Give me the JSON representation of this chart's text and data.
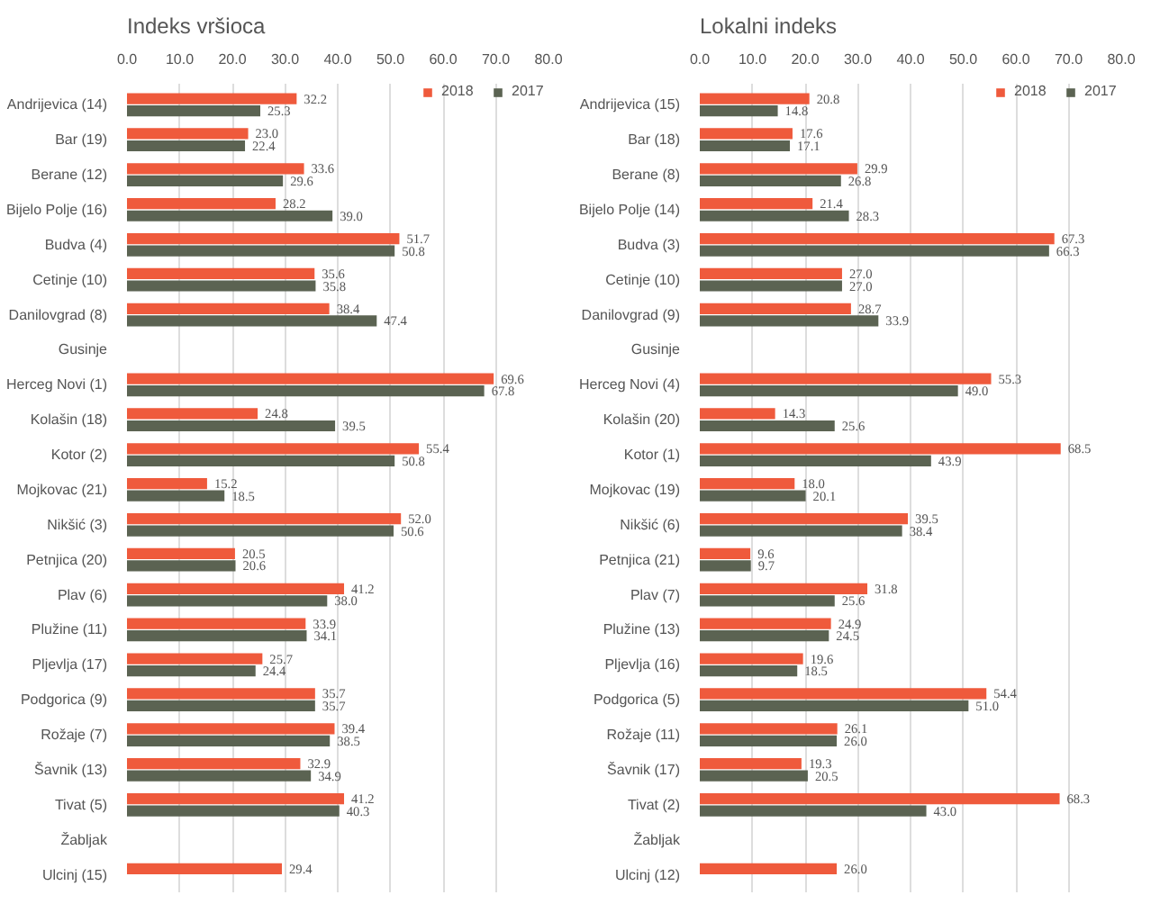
{
  "chart_data": [
    {
      "type": "bar",
      "orientation": "horizontal",
      "title": "Indeks vršioca",
      "categories": [
        "Andrijevica (14)",
        "Bar (19)",
        "Berane (12)",
        "Bijelo Polje (16)",
        "Budva (4)",
        "Cetinje (10)",
        "Danilovgrad (8)",
        "Gusinje",
        "Herceg Novi (1)",
        "Kolašin (18)",
        "Kotor (2)",
        "Mojkovac (21)",
        "Nikšić (3)",
        "Petnjica (20)",
        "Plav (6)",
        "Plužine (11)",
        "Pljevlja (17)",
        "Podgorica (9)",
        "Rožaje (7)",
        "Šavnik (13)",
        "Tivat (5)",
        "Žabljak",
        "Ulcinj (15)"
      ],
      "series": [
        {
          "name": "2018",
          "color": "#ef5a3c",
          "values": [
            32.2,
            23.0,
            33.6,
            28.2,
            51.7,
            35.6,
            38.4,
            null,
            69.6,
            24.8,
            55.4,
            15.2,
            52.0,
            20.5,
            41.2,
            33.9,
            25.7,
            35.7,
            39.4,
            32.9,
            41.2,
            null,
            29.4
          ],
          "value_labels": [
            "32.2",
            "23.0",
            "33.6",
            "28.2",
            "51.7",
            "35.6",
            "38.4",
            null,
            "69.6",
            "24.8",
            "55.4",
            "15.2",
            "52.0",
            "20.5",
            "41.2",
            "33.9",
            "25.7",
            "35.7",
            "39.4",
            "32.9",
            "41.2",
            null,
            "29.4"
          ]
        },
        {
          "name": "2017",
          "color": "#5b6352",
          "values": [
            25.3,
            22.4,
            29.6,
            39.0,
            50.8,
            35.8,
            47.4,
            null,
            67.8,
            39.5,
            50.8,
            18.5,
            50.6,
            20.6,
            38.0,
            34.1,
            24.4,
            35.7,
            38.5,
            34.9,
            40.3,
            null,
            null
          ],
          "value_labels": [
            "25.3",
            "22.4",
            "29.6",
            "39.0",
            "50.8",
            "35.8",
            "47.4",
            null,
            "67.8",
            "39.5",
            "50.8",
            "18.5",
            "50.6",
            "20.6",
            "38.0",
            "34.1",
            "24.4",
            "35.7",
            "38.5",
            "34.9",
            "40.3",
            null,
            null
          ]
        }
      ],
      "xlim": [
        0,
        80
      ],
      "xticks": [
        {
          "value": 0,
          "label": "0.0"
        },
        {
          "value": 10,
          "label": "10.0"
        },
        {
          "value": 20,
          "label": "20.0"
        },
        {
          "value": 30,
          "label": "30.0"
        },
        {
          "value": 40,
          "label": "40.0"
        },
        {
          "value": 50,
          "label": "50.0"
        },
        {
          "value": 60,
          "label": "60.0"
        },
        {
          "value": 70,
          "label": "70.0"
        },
        {
          "value": 80,
          "label": "80.0"
        }
      ],
      "grid": "x",
      "legend": "top right"
    },
    {
      "type": "bar",
      "orientation": "horizontal",
      "title": "Lokalni indeks",
      "categories": [
        "Andrijevica (15)",
        "Bar (18)",
        "Berane (8)",
        "Bijelo Polje (14)",
        "Budva (3)",
        "Cetinje (10)",
        "Danilovgrad (9)",
        "Gusinje",
        "Herceg Novi (4)",
        "Kolašin (20)",
        "Kotor (1)",
        "Mojkovac (19)",
        "Nikšić (6)",
        "Petnjica (21)",
        "Plav (7)",
        "Plužine (13)",
        "Pljevlja (16)",
        "Podgorica (5)",
        "Rožaje (11)",
        "Šavnik (17)",
        "Tivat (2)",
        "Žabljak",
        "Ulcinj (12)"
      ],
      "series": [
        {
          "name": "2018",
          "color": "#ef5a3c",
          "values": [
            20.8,
            17.6,
            29.9,
            21.4,
            67.3,
            27.0,
            28.7,
            null,
            55.3,
            14.3,
            68.5,
            18.0,
            39.5,
            9.6,
            31.8,
            24.9,
            19.6,
            54.4,
            26.1,
            19.3,
            68.3,
            null,
            26.0
          ],
          "value_labels": [
            "20.8",
            "17.6",
            "29.9",
            "21.4",
            "67.3",
            "27.0",
            "28.7",
            null,
            "55.3",
            "14.3",
            "68.5",
            "18.0",
            "39.5",
            "9.6",
            "31.8",
            "24.9",
            "19.6",
            "54.4",
            "26.1",
            "19.3",
            "68.3",
            null,
            "26.0"
          ]
        },
        {
          "name": "2017",
          "color": "#5b6352",
          "values": [
            14.8,
            17.1,
            26.8,
            28.3,
            66.3,
            27.0,
            33.9,
            null,
            49.0,
            25.6,
            43.9,
            20.1,
            38.4,
            9.7,
            25.6,
            24.5,
            18.5,
            51.0,
            26.0,
            20.5,
            43.0,
            null,
            null
          ],
          "value_labels": [
            "14.8",
            "17.1",
            "26.8",
            "28.3",
            "66.3",
            "27.0",
            "33.9",
            null,
            "49.0",
            "25.6",
            "43.9",
            "20.1",
            "38.4",
            "9.7",
            "25.6",
            "24.5",
            "18.5",
            "51.0",
            "26.0",
            "20.5",
            "43.0",
            null,
            null
          ]
        }
      ],
      "xlim": [
        0,
        80
      ],
      "xticks": [
        {
          "value": 0,
          "label": "0.0"
        },
        {
          "value": 10,
          "label": "10.0"
        },
        {
          "value": 20,
          "label": "20.0"
        },
        {
          "value": 30,
          "label": "30.0"
        },
        {
          "value": 40,
          "label": "40.0"
        },
        {
          "value": 50,
          "label": "50.0"
        },
        {
          "value": 60,
          "label": "60.0"
        },
        {
          "value": 70,
          "label": "70.0"
        },
        {
          "value": 80,
          "label": "80.0"
        }
      ],
      "grid": "x",
      "legend": "top right"
    }
  ]
}
